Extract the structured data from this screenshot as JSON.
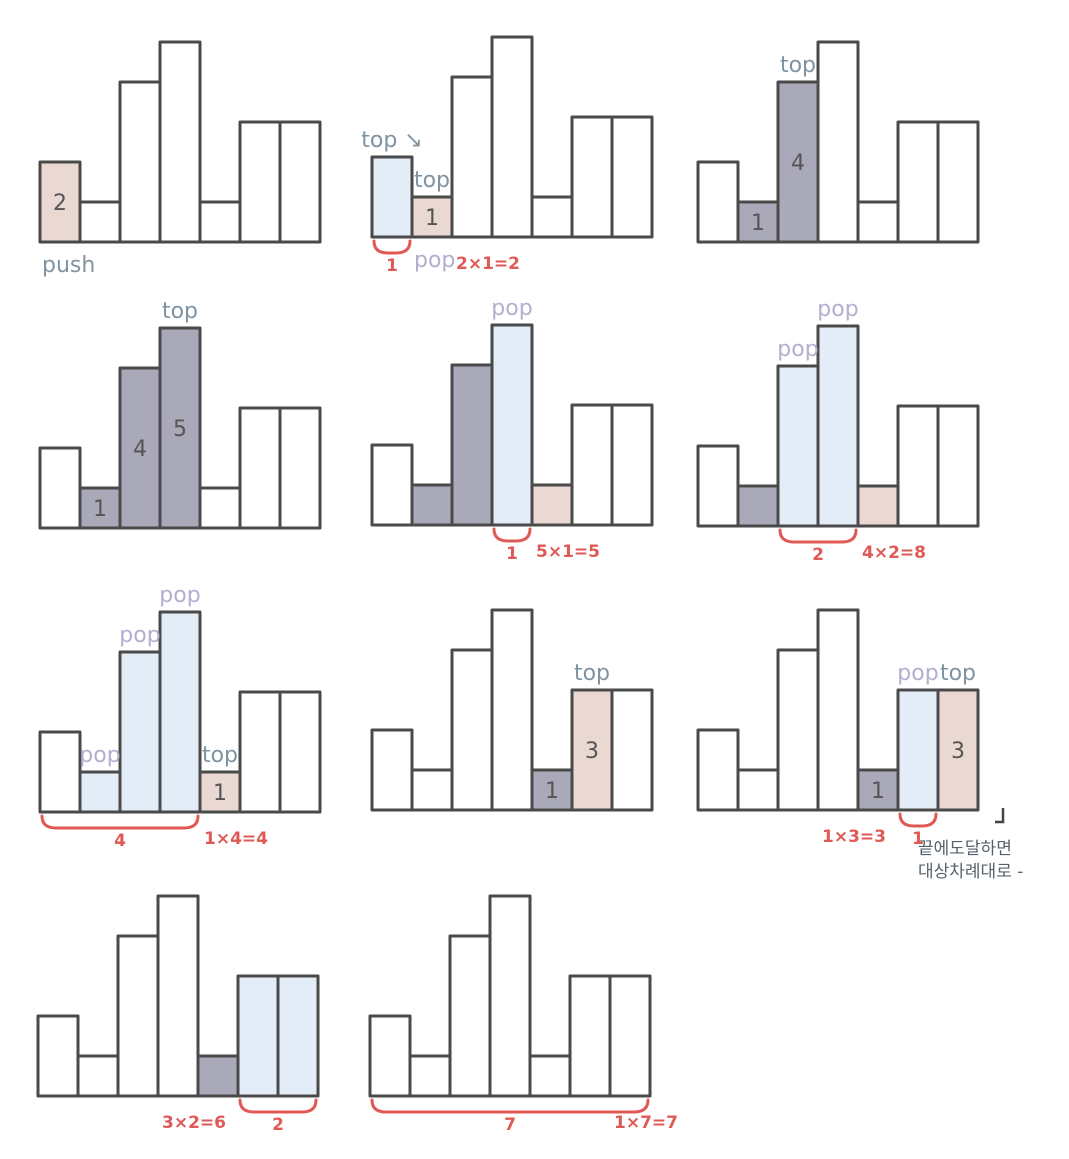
{
  "colors": {
    "outline": "#4a4a4a",
    "pushed": "#ead8d3",
    "stack": "#a9a9b9",
    "popped": "#e3edf7",
    "accent_red": "#e05a55",
    "label_top": "#7f93a1",
    "label_pop": "#b5aed0"
  },
  "heights": [
    2,
    1,
    4,
    5,
    1,
    3,
    3
  ],
  "panels": [
    {
      "bar_states": [
        "pushed",
        "empty",
        "empty",
        "empty",
        "empty",
        "empty",
        "empty"
      ],
      "bar_numbers": [
        "2",
        "",
        "",
        "",
        "",
        "",
        ""
      ],
      "bar_labels": [],
      "footer_texts": [
        {
          "text": "push",
          "style": "dark",
          "bar": 0
        }
      ],
      "brackets": []
    },
    {
      "bar_states": [
        "popped",
        "pushed",
        "empty",
        "empty",
        "empty",
        "empty",
        "empty"
      ],
      "bar_numbers": [
        "",
        "1",
        "",
        "",
        "",
        "",
        ""
      ],
      "bar_labels": [
        {
          "bar": 0,
          "text": "top ↘",
          "style": "dark"
        },
        {
          "bar": 1,
          "text": "top",
          "style": "dark"
        }
      ],
      "footer_texts": [
        {
          "text": "pop",
          "style": "pop",
          "bar": 1
        },
        {
          "text": "2×1=2",
          "style": "red",
          "bar": 2
        }
      ],
      "brackets": [
        {
          "from": 0,
          "to": 0,
          "label": "1"
        }
      ]
    },
    {
      "bar_states": [
        "empty",
        "stack",
        "stack",
        "empty",
        "empty",
        "empty",
        "empty"
      ],
      "bar_numbers": [
        "",
        "1",
        "4",
        "",
        "",
        "",
        ""
      ],
      "bar_labels": [
        {
          "bar": 2,
          "text": "top",
          "style": "dark"
        }
      ],
      "footer_texts": [],
      "brackets": []
    },
    {
      "bar_states": [
        "empty",
        "stack",
        "stack",
        "stack",
        "empty",
        "empty",
        "empty"
      ],
      "bar_numbers": [
        "",
        "1",
        "4",
        "5",
        "",
        "",
        ""
      ],
      "bar_labels": [
        {
          "bar": 3,
          "text": "top",
          "style": "dark"
        }
      ],
      "footer_texts": [],
      "brackets": []
    },
    {
      "bar_states": [
        "empty",
        "stack",
        "stack",
        "popped",
        "pushed",
        "empty",
        "empty"
      ],
      "bar_numbers": [
        "",
        "",
        "",
        "",
        "",
        "",
        ""
      ],
      "bar_labels": [
        {
          "bar": 3,
          "text": "pop",
          "style": "pop"
        }
      ],
      "footer_texts": [
        {
          "text": "5×1=5",
          "style": "red",
          "bar": 4
        }
      ],
      "brackets": [
        {
          "from": 3,
          "to": 3,
          "label": "1"
        }
      ]
    },
    {
      "bar_states": [
        "empty",
        "stack",
        "popped",
        "popped",
        "pushed",
        "empty",
        "empty"
      ],
      "bar_numbers": [
        "",
        "",
        "",
        "",
        "",
        "",
        ""
      ],
      "bar_labels": [
        {
          "bar": 2,
          "text": "pop",
          "style": "pop"
        },
        {
          "bar": 3,
          "text": "pop",
          "style": "pop"
        }
      ],
      "footer_texts": [
        {
          "text": "4×2=8",
          "style": "red",
          "bar": 4
        }
      ],
      "brackets": [
        {
          "from": 2,
          "to": 3,
          "label": "2"
        }
      ]
    },
    {
      "bar_states": [
        "empty",
        "popped",
        "popped",
        "popped",
        "pushed",
        "empty",
        "empty"
      ],
      "bar_numbers": [
        "",
        "",
        "",
        "",
        "1",
        "",
        ""
      ],
      "bar_labels": [
        {
          "bar": 1,
          "text": "pop",
          "style": "pop"
        },
        {
          "bar": 2,
          "text": "pop",
          "style": "pop"
        },
        {
          "bar": 3,
          "text": "pop",
          "style": "pop"
        },
        {
          "bar": 4,
          "text": "top",
          "style": "dark"
        }
      ],
      "footer_texts": [
        {
          "text": "1×4=4",
          "style": "red",
          "bar": 4
        }
      ],
      "brackets": [
        {
          "from": 0,
          "to": 3,
          "label": "4"
        }
      ]
    },
    {
      "bar_states": [
        "empty",
        "empty",
        "empty",
        "empty",
        "stack",
        "pushed",
        "empty"
      ],
      "bar_numbers": [
        "",
        "",
        "",
        "",
        "1",
        "3",
        ""
      ],
      "bar_labels": [
        {
          "bar": 5,
          "text": "top",
          "style": "dark"
        }
      ],
      "footer_texts": [],
      "brackets": []
    },
    {
      "bar_states": [
        "empty",
        "empty",
        "empty",
        "empty",
        "stack",
        "popped",
        "pushed"
      ],
      "bar_numbers": [
        "",
        "",
        "",
        "",
        "1",
        "",
        "3"
      ],
      "bar_labels": [
        {
          "bar": 5,
          "text": "pop",
          "style": "pop"
        },
        {
          "bar": 6,
          "text": "top",
          "style": "dark"
        }
      ],
      "footer_texts": [
        {
          "text": "1×3=3",
          "style": "red",
          "bar": 3
        }
      ],
      "brackets": [
        {
          "from": 5,
          "to": 5,
          "label": "1"
        }
      ]
    },
    {
      "bar_states": [
        "empty",
        "empty",
        "empty",
        "empty",
        "stack",
        "popped",
        "popped"
      ],
      "bar_numbers": [
        "",
        "",
        "",
        "",
        "",
        "",
        ""
      ],
      "bar_labels": [],
      "footer_texts": [
        {
          "text": "3×2=6",
          "style": "red",
          "bar": 3
        }
      ],
      "brackets": [
        {
          "from": 5,
          "to": 6,
          "label": "2"
        }
      ]
    },
    {
      "bar_states": [
        "empty",
        "empty",
        "empty",
        "empty",
        "empty",
        "empty",
        "empty"
      ],
      "bar_numbers": [
        "",
        "",
        "",
        "",
        "",
        "",
        ""
      ],
      "bar_labels": [],
      "footer_texts": [
        {
          "text": "1×7=7",
          "style": "red",
          "bar": 6
        }
      ],
      "brackets": [
        {
          "from": 0,
          "to": 6,
          "label": "7"
        }
      ]
    }
  ],
  "note": {
    "line1": "끝에도달하면",
    "line2": "대상차례대로 -"
  }
}
